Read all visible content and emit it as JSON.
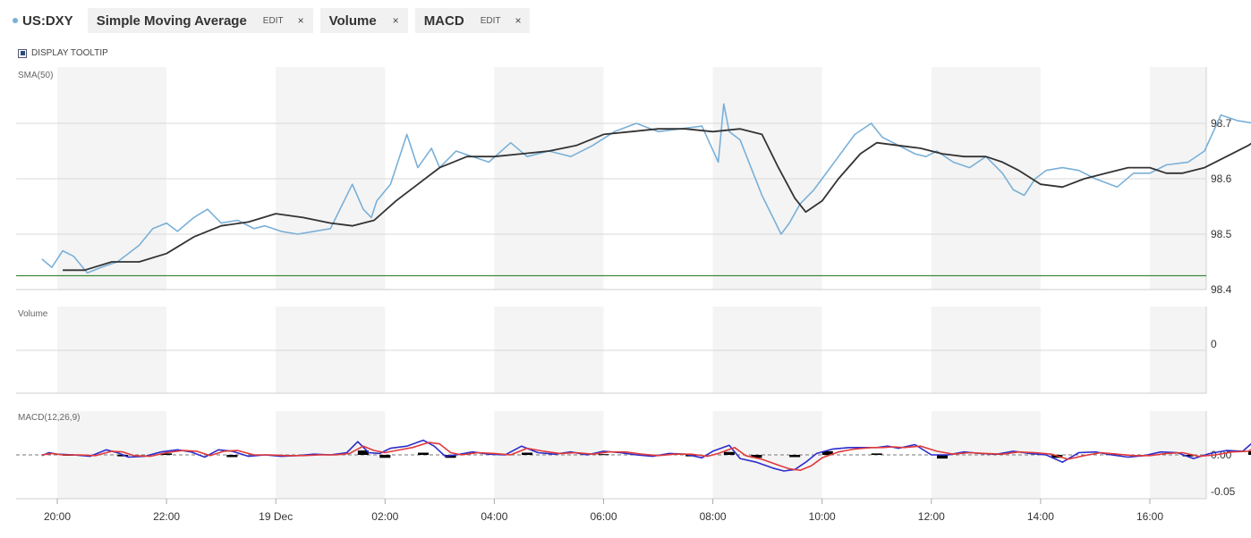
{
  "header": {
    "symbol": "US:DXY",
    "symbol_color": "#7ab0d8",
    "studies": [
      {
        "label": "Simple Moving Average",
        "edit": "EDIT",
        "close": "×"
      },
      {
        "label": "Volume",
        "edit": "",
        "close": "×"
      },
      {
        "label": "MACD",
        "edit": "EDIT",
        "close": "×"
      }
    ]
  },
  "tooltip_toggle": {
    "label": "DISPLAY TOOLTIP",
    "checked": true
  },
  "chart_data": {
    "type": "line",
    "x_ticks": [
      "20:00",
      "22:00",
      "19 Dec",
      "02:00",
      "04:00",
      "06:00",
      "08:00",
      "10:00",
      "12:00",
      "14:00",
      "16:00"
    ],
    "panels": [
      {
        "title": "SMA(50)",
        "ylim": [
          98.4,
          98.75
        ],
        "y_ticks": [
          "98.7",
          "98.6",
          "98.5",
          "98.4"
        ],
        "reference_line": 98.425,
        "series": [
          {
            "role": "price",
            "color": "#7ab0d8",
            "x": [
              19.72,
              19.9,
              20.1,
              20.3,
              20.55,
              20.8,
              21.1,
              21.3,
              21.5,
              21.75,
              22.0,
              22.2,
              22.5,
              22.75,
              23.0,
              23.3,
              23.6,
              23.8,
              24.1,
              24.4,
              24.7,
              25.0,
              25.4,
              25.6,
              25.75,
              25.85,
              26.1,
              26.4,
              26.6,
              26.85,
              27.0,
              27.3,
              27.6,
              27.9,
              28.3,
              28.6,
              29.0,
              29.4,
              29.8,
              30.2,
              30.6,
              31.0,
              31.4,
              31.8,
              32.1,
              32.2,
              32.3,
              32.5,
              32.7,
              32.9,
              33.1,
              33.25,
              33.4,
              33.6,
              33.85,
              34.0,
              34.3,
              34.6,
              34.9,
              35.1,
              35.4,
              35.7,
              35.9,
              36.1,
              36.4,
              36.7,
              37.0,
              37.3,
              37.5,
              37.7,
              37.9,
              38.1,
              38.4,
              38.7,
              39.0,
              39.4,
              39.7,
              40.0,
              40.3,
              40.7,
              41.0,
              41.3,
              41.6,
              41.9,
              42.2,
              42.5,
              42.8,
              43.1,
              43.4,
              43.7,
              44.0,
              44.3,
              44.6,
              44.95
            ],
            "y": [
              98.455,
              98.44,
              98.47,
              98.46,
              98.43,
              98.44,
              98.45,
              98.465,
              98.48,
              98.51,
              98.52,
              98.505,
              98.53,
              98.545,
              98.52,
              98.525,
              98.51,
              98.515,
              98.505,
              98.5,
              98.505,
              98.51,
              98.59,
              98.545,
              98.53,
              98.56,
              98.59,
              98.68,
              98.62,
              98.655,
              98.62,
              98.65,
              98.64,
              98.63,
              98.665,
              98.64,
              98.65,
              98.64,
              98.66,
              98.685,
              98.7,
              98.685,
              98.69,
              98.695,
              98.63,
              98.735,
              98.685,
              98.67,
              98.62,
              98.57,
              98.53,
              98.5,
              98.52,
              98.555,
              98.58,
              98.6,
              98.64,
              98.68,
              98.7,
              98.675,
              98.66,
              98.645,
              98.64,
              98.65,
              98.63,
              98.62,
              98.64,
              98.61,
              98.58,
              98.57,
              98.6,
              98.615,
              98.62,
              98.615,
              98.6,
              98.585,
              98.61,
              98.61,
              98.625,
              98.63,
              98.65,
              98.715,
              98.705,
              98.7,
              98.71,
              98.725,
              98.71,
              98.725,
              98.725,
              98.725,
              98.725,
              98.725,
              98.725,
              98.725
            ]
          },
          {
            "role": "sma",
            "name": "SMA(50)",
            "color": "#333333",
            "x": [
              20.1,
              20.5,
              21.0,
              21.5,
              22.0,
              22.5,
              23.0,
              23.5,
              24.0,
              24.5,
              25.0,
              25.4,
              25.8,
              26.2,
              26.6,
              27.0,
              27.5,
              28.0,
              28.5,
              29.0,
              29.5,
              30.0,
              30.5,
              31.0,
              31.5,
              32.0,
              32.5,
              32.9,
              33.2,
              33.5,
              33.7,
              34.0,
              34.3,
              34.7,
              35.0,
              35.4,
              35.8,
              36.2,
              36.6,
              37.0,
              37.3,
              37.6,
              38.0,
              38.4,
              38.8,
              39.2,
              39.6,
              40.0,
              40.3,
              40.6,
              41.0,
              41.4,
              41.8,
              42.2,
              42.6,
              42.9
            ],
            "y": [
              98.435,
              98.435,
              98.45,
              98.45,
              98.465,
              98.495,
              98.515,
              98.522,
              98.537,
              98.53,
              98.52,
              98.515,
              98.525,
              98.56,
              98.59,
              98.62,
              98.64,
              98.64,
              98.645,
              98.65,
              98.66,
              98.68,
              98.685,
              98.69,
              98.69,
              98.685,
              98.69,
              98.68,
              98.62,
              98.565,
              98.54,
              98.56,
              98.6,
              98.645,
              98.665,
              98.66,
              98.655,
              98.645,
              98.64,
              98.64,
              98.63,
              98.615,
              98.59,
              98.585,
              98.6,
              98.61,
              98.62,
              98.62,
              98.61,
              98.61,
              98.62,
              98.64,
              98.66,
              98.685,
              98.7,
              98.705
            ]
          }
        ]
      },
      {
        "title": "Volume",
        "y_ticks": [
          "0"
        ],
        "series": []
      },
      {
        "title": "MACD(12,26,9)",
        "ylim": [
          -0.06,
          0.035
        ],
        "y_ticks": [
          "0.00",
          "-0.05"
        ],
        "series": [
          {
            "role": "macd",
            "color": "#2c2ccc",
            "x": [
              19.72,
              19.85,
              20.0,
              20.3,
              20.6,
              20.9,
              21.1,
              21.3,
              21.6,
              21.9,
              22.2,
              22.45,
              22.7,
              22.95,
              23.2,
              23.5,
              23.8,
              24.1,
              24.4,
              24.7,
              25.0,
              25.3,
              25.5,
              25.7,
              25.9,
              26.1,
              26.4,
              26.7,
              26.9,
              27.1,
              27.3,
              27.6,
              27.9,
              28.2,
              28.5,
              28.8,
              29.1,
              29.4,
              29.7,
              30.0,
              30.3,
              30.6,
              30.9,
              31.2,
              31.5,
              31.8,
              32.0,
              32.3,
              32.5,
              32.8,
              33.1,
              33.3,
              33.5,
              33.7,
              33.9,
              34.2,
              34.5,
              34.8,
              35.0,
              35.2,
              35.4,
              35.7,
              36.0,
              36.3,
              36.6,
              36.9,
              37.2,
              37.5,
              37.8,
              38.1,
              38.4,
              38.7,
              39.0,
              39.3,
              39.6,
              39.9,
              40.2,
              40.5,
              40.8,
              41.1,
              41.4,
              41.7,
              41.9,
              42.1,
              42.4,
              42.7,
              42.95
            ],
            "y": [
              -0.001,
              0.003,
              0.001,
              0.0,
              -0.002,
              0.007,
              0.003,
              -0.003,
              -0.002,
              0.004,
              0.007,
              0.004,
              -0.003,
              0.007,
              0.005,
              -0.002,
              0.0,
              -0.002,
              -0.001,
              0.001,
              0.0,
              0.003,
              0.018,
              0.003,
              0.002,
              0.009,
              0.012,
              0.02,
              0.012,
              -0.002,
              0.0,
              0.004,
              0.001,
              0.0,
              0.012,
              0.003,
              0.001,
              0.004,
              0.0,
              0.005,
              0.003,
              0.0,
              -0.002,
              0.002,
              0.001,
              -0.004,
              0.005,
              0.013,
              -0.005,
              -0.01,
              -0.018,
              -0.022,
              -0.02,
              -0.01,
              0.002,
              0.008,
              0.01,
              0.01,
              0.01,
              0.012,
              0.009,
              0.014,
              0.0,
              0.0,
              0.004,
              0.002,
              0.001,
              0.005,
              0.002,
              0.0,
              -0.01,
              0.003,
              0.004,
              0.0,
              -0.003,
              -0.001,
              0.004,
              0.003,
              -0.005,
              0.002,
              0.006,
              0.005,
              0.018,
              0.01,
              0.005,
              0.004,
              0.004
            ]
          },
          {
            "role": "signal",
            "color": "#e03a3a",
            "x": [
              19.72,
              19.9,
              20.1,
              20.4,
              20.7,
              21.0,
              21.2,
              21.4,
              21.7,
              22.0,
              22.3,
              22.55,
              22.8,
              23.05,
              23.3,
              23.6,
              23.9,
              24.2,
              24.5,
              24.8,
              25.1,
              25.35,
              25.6,
              25.8,
              26.0,
              26.2,
              26.5,
              26.8,
              27.0,
              27.2,
              27.4,
              27.7,
              28.0,
              28.3,
              28.6,
              28.9,
              29.2,
              29.5,
              29.8,
              30.1,
              30.4,
              30.7,
              31.0,
              31.3,
              31.6,
              31.9,
              32.1,
              32.4,
              32.6,
              32.9,
              33.2,
              33.4,
              33.6,
              33.8,
              34.0,
              34.3,
              34.6,
              34.9,
              35.1,
              35.3,
              35.5,
              35.8,
              36.1,
              36.4,
              36.7,
              37.0,
              37.3,
              37.6,
              37.9,
              38.2,
              38.5,
              38.8,
              39.1,
              39.4,
              39.7,
              40.0,
              40.3,
              40.6,
              40.9,
              41.2,
              41.5,
              41.8,
              42.0,
              42.2,
              42.5,
              42.8,
              42.95
            ],
            "y": [
              0.0,
              0.002,
              0.0,
              0.0,
              -0.001,
              0.005,
              0.004,
              -0.001,
              -0.002,
              0.003,
              0.006,
              0.005,
              -0.001,
              0.005,
              0.006,
              0.0,
              0.0,
              -0.001,
              -0.001,
              0.0,
              0.0,
              0.002,
              0.012,
              0.006,
              0.003,
              0.006,
              0.01,
              0.017,
              0.015,
              0.003,
              0.0,
              0.003,
              0.002,
              0.0,
              0.009,
              0.005,
              0.002,
              0.003,
              0.001,
              0.004,
              0.004,
              0.001,
              -0.001,
              0.001,
              0.001,
              -0.002,
              0.002,
              0.01,
              -0.001,
              -0.006,
              -0.014,
              -0.019,
              -0.021,
              -0.015,
              -0.004,
              0.004,
              0.008,
              0.01,
              0.01,
              0.011,
              0.01,
              0.012,
              0.005,
              0.001,
              0.003,
              0.002,
              0.001,
              0.004,
              0.003,
              0.001,
              -0.006,
              -0.001,
              0.003,
              0.001,
              -0.001,
              -0.001,
              0.002,
              0.003,
              -0.002,
              0.0,
              0.004,
              0.005,
              0.013,
              0.012,
              0.007,
              0.005,
              0.004
            ]
          },
          {
            "role": "histogram",
            "color": "#000000",
            "x": [
              20.2,
              21.2,
              22.0,
              23.2,
              24.0,
              25.6,
              26.0,
              26.7,
              27.2,
              28.6,
              30.0,
              31.6,
              32.3,
              32.8,
              33.5,
              34.1,
              35.0,
              36.2,
              37.2,
              38.3,
              39.3,
              40.7,
              41.9,
              42.6
            ],
            "y": [
              -0.001,
              -0.002,
              0.002,
              -0.003,
              -0.001,
              0.006,
              -0.004,
              0.003,
              -0.004,
              0.003,
              0.001,
              -0.002,
              0.004,
              -0.004,
              -0.003,
              0.005,
              0.002,
              -0.005,
              0.002,
              -0.004,
              0.002,
              -0.002,
              0.005,
              -0.001
            ]
          }
        ]
      }
    ]
  }
}
